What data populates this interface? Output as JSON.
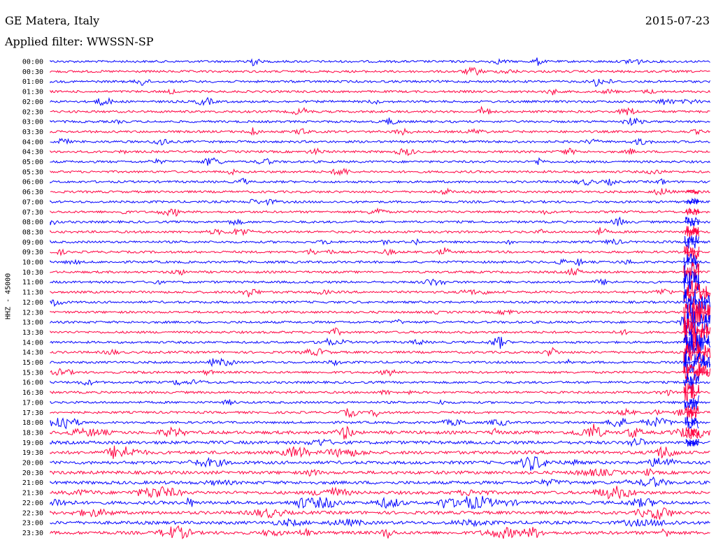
{
  "header": {
    "station": "GE Matera, Italy",
    "filter": "Applied filter: WWSSN-SP",
    "date": "2015-07-23"
  },
  "chart_data": {
    "type": "line",
    "title": "GE Matera, Italy",
    "subtitle": "Applied filter: WWSSN-SP",
    "date": "2015-07-23",
    "ylabel": "HHZ - 45000",
    "row_labels": [
      "00:00",
      "00:30",
      "01:00",
      "01:30",
      "02:00",
      "02:30",
      "03:00",
      "03:30",
      "04:00",
      "04:30",
      "05:00",
      "05:30",
      "06:00",
      "06:30",
      "07:00",
      "07:30",
      "08:00",
      "08:30",
      "09:00",
      "09:30",
      "10:00",
      "10:30",
      "11:00",
      "11:30",
      "12:00",
      "12:30",
      "13:00",
      "13:30",
      "14:00",
      "14:30",
      "15:00",
      "15:30",
      "16:00",
      "16:30",
      "17:00",
      "17:30",
      "18:00",
      "18:30",
      "19:00",
      "19:30",
      "20:00",
      "20:30",
      "21:00",
      "21:30",
      "22:00",
      "22:30",
      "23:00",
      "23:30"
    ],
    "colors": [
      "#0000ff",
      "#ff0040"
    ],
    "row_minutes": 30,
    "major_event": {
      "rows_affected": [
        "06:30",
        "07:00",
        "07:30",
        "08:00",
        "08:30",
        "09:00",
        "09:30",
        "10:00",
        "10:30",
        "11:00",
        "11:30",
        "12:00",
        "12:30",
        "13:00",
        "13:30",
        "14:00",
        "14:30",
        "15:00",
        "15:30",
        "16:00",
        "16:30",
        "17:00",
        "17:30",
        "18:00",
        "18:30",
        "19:00"
      ]
    }
  }
}
